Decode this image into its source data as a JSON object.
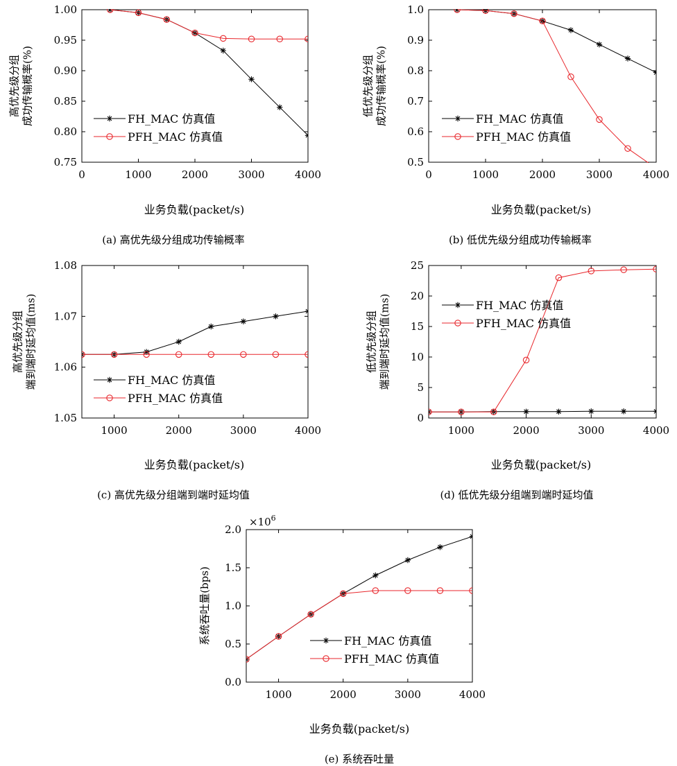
{
  "chart_data": [
    {
      "id": "a",
      "type": "line",
      "caption": "(a) 高优先级分组成功传输概率",
      "xlabel": "业务负载(packet/s)",
      "ylabel": [
        "高优先级分组",
        "成功传输概率(%)"
      ],
      "xlim": [
        0,
        4000
      ],
      "ylim": [
        0.75,
        1.0
      ],
      "xticks": [
        0,
        1000,
        2000,
        3000,
        4000
      ],
      "yticks": [
        0.75,
        0.8,
        0.85,
        0.9,
        0.95,
        1.0
      ],
      "ytick_labels": [
        "0.75",
        "0.80",
        "0.85",
        "0.90",
        "0.95",
        "1.00"
      ],
      "grid": false,
      "legend": "bottom-left",
      "x": [
        500,
        1000,
        1500,
        2000,
        2500,
        3000,
        3500,
        4000
      ],
      "series": [
        {
          "name": "FH_MAC 仿真值",
          "marker": "star",
          "color": "#000000",
          "values": [
            1.0,
            0.995,
            0.984,
            0.962,
            0.933,
            0.886,
            0.84,
            0.794
          ]
        },
        {
          "name": "PFH_MAC 仿真值",
          "marker": "circle",
          "color": "#e8262b",
          "values": [
            1.0,
            0.995,
            0.984,
            0.962,
            0.953,
            0.952,
            0.952,
            0.952
          ]
        }
      ]
    },
    {
      "id": "b",
      "type": "line",
      "caption": "(b) 低优先级分组成功传输概率",
      "xlabel": "业务负载(packet/s)",
      "ylabel": [
        "低优先级分组",
        "成功传输概率(%)"
      ],
      "xlim": [
        0,
        4000
      ],
      "ylim": [
        0.5,
        1.0
      ],
      "xticks": [
        0,
        1000,
        2000,
        3000,
        4000
      ],
      "yticks": [
        0.5,
        0.6,
        0.7,
        0.8,
        0.9,
        1.0
      ],
      "ytick_labels": [
        "0.5",
        "0.6",
        "0.7",
        "0.8",
        "0.9",
        "1.0"
      ],
      "grid": false,
      "legend": "bottom-left",
      "x": [
        500,
        1000,
        1500,
        2000,
        2500,
        3000,
        3500,
        4000
      ],
      "series": [
        {
          "name": "FH_MAC 仿真值",
          "marker": "star",
          "color": "#000000",
          "values": [
            1.0,
            0.997,
            0.987,
            0.963,
            0.933,
            0.886,
            0.84,
            0.794
          ]
        },
        {
          "name": "PFH_MAC 仿真值",
          "marker": "circle",
          "color": "#e8262b",
          "values": [
            1.0,
            0.997,
            0.987,
            0.963,
            0.78,
            0.64,
            0.545,
            0.48
          ]
        }
      ]
    },
    {
      "id": "c",
      "type": "line",
      "caption": "(c) 高优先级分组端到端时延均值",
      "xlabel": "业务负载(packet/s)",
      "ylabel": [
        "高优先级分组",
        "端到端时延均值(ms)"
      ],
      "xlim": [
        500,
        4000
      ],
      "ylim": [
        1.05,
        1.08
      ],
      "xticks": [
        1000,
        2000,
        3000,
        4000
      ],
      "yticks": [
        1.05,
        1.06,
        1.07,
        1.08
      ],
      "ytick_labels": [
        "1.05",
        "1.06",
        "1.07",
        "1.08"
      ],
      "grid": false,
      "legend": "bottom-left",
      "x": [
        500,
        1000,
        1500,
        2000,
        2500,
        3000,
        3500,
        4000
      ],
      "series": [
        {
          "name": "FH_MAC 仿真值",
          "marker": "star",
          "color": "#000000",
          "values": [
            1.0625,
            1.0625,
            1.063,
            1.065,
            1.068,
            1.069,
            1.07,
            1.071
          ]
        },
        {
          "name": "PFH_MAC 仿真值",
          "marker": "circle",
          "color": "#e8262b",
          "values": [
            1.0625,
            1.0625,
            1.0625,
            1.0625,
            1.0625,
            1.0625,
            1.0625,
            1.0625
          ]
        }
      ]
    },
    {
      "id": "d",
      "type": "line",
      "caption": "(d) 低优先级分组端到端时延均值",
      "xlabel": "业务负载(packet/s)",
      "ylabel": [
        "低优先级分组",
        "端到端时延均值(ms)"
      ],
      "xlim": [
        500,
        4000
      ],
      "ylim": [
        0,
        25
      ],
      "xticks": [
        1000,
        2000,
        3000,
        4000
      ],
      "yticks": [
        0,
        5,
        10,
        15,
        20,
        25
      ],
      "ytick_labels": [
        "0",
        "5",
        "10",
        "15",
        "20",
        "25"
      ],
      "grid": false,
      "legend": "top-left",
      "x": [
        500,
        1000,
        1500,
        2000,
        2500,
        3000,
        3500,
        4000
      ],
      "series": [
        {
          "name": "FH_MAC 仿真值",
          "marker": "star",
          "color": "#000000",
          "values": [
            1.0,
            1.0,
            1.05,
            1.05,
            1.05,
            1.1,
            1.1,
            1.1
          ]
        },
        {
          "name": "PFH_MAC 仿真值",
          "marker": "circle",
          "color": "#e8262b",
          "values": [
            1.0,
            1.0,
            1.0,
            9.5,
            23.0,
            24.1,
            24.3,
            24.4
          ]
        }
      ]
    },
    {
      "id": "e",
      "type": "line",
      "caption": "(e) 系统吞吐量",
      "xlabel": "业务负载(packet/s)",
      "ylabel": [
        "系统吞吐量(bps)"
      ],
      "xlim": [
        500,
        4000
      ],
      "ylim": [
        0,
        2.0
      ],
      "xticks": [
        1000,
        2000,
        3000,
        4000
      ],
      "yticks": [
        0,
        0.5,
        1.0,
        1.5,
        2.0
      ],
      "ytick_labels": [
        "0.0",
        "0.5",
        "1.0",
        "1.5",
        "2.0"
      ],
      "y_multiplier_base": "×10",
      "y_multiplier_exp": "6",
      "grid": false,
      "legend": "bottom-right",
      "x": [
        500,
        1000,
        1500,
        2000,
        2500,
        3000,
        3500,
        4000
      ],
      "series": [
        {
          "name": "FH_MAC 仿真值",
          "marker": "star",
          "color": "#000000",
          "values": [
            0.3,
            0.6,
            0.89,
            1.16,
            1.4,
            1.6,
            1.77,
            1.91
          ]
        },
        {
          "name": "PFH_MAC 仿真值",
          "marker": "circle",
          "color": "#e8262b",
          "values": [
            0.3,
            0.6,
            0.89,
            1.16,
            1.2,
            1.2,
            1.2,
            1.2
          ]
        }
      ]
    }
  ]
}
